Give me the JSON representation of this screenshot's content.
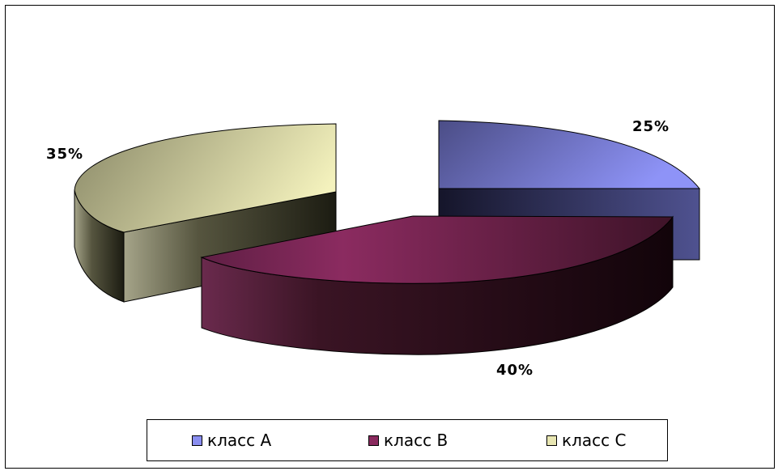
{
  "chart_data": {
    "type": "pie",
    "style": "3d-exploded",
    "categories": [
      "класс A",
      "класс B",
      "класс C"
    ],
    "values": [
      25,
      40,
      35
    ],
    "labels": [
      "25%",
      "40%",
      "35%"
    ],
    "colors": [
      "#8a8ef0",
      "#8a2a5e",
      "#e8e6b2"
    ],
    "legend": "bottom"
  }
}
